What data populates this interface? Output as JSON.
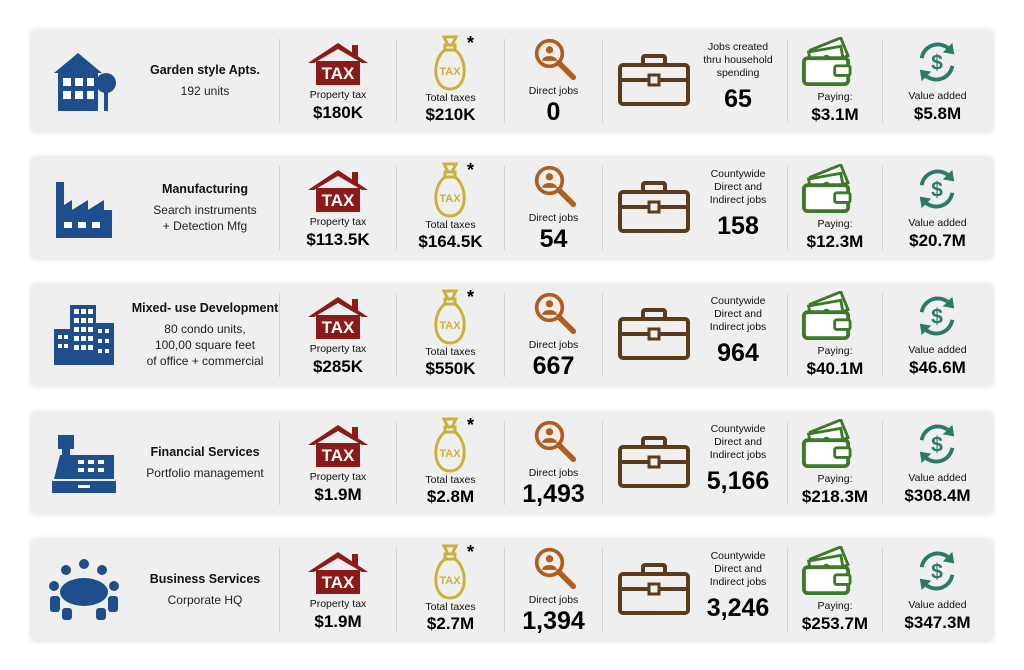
{
  "labels": {
    "property_tax": "Property tax",
    "total_taxes": "Total taxes",
    "direct_jobs": "Direct jobs",
    "paying": "Paying:",
    "value_added": "Value added",
    "asterisk": "*",
    "tax_text": "TAX"
  },
  "colors": {
    "house": "#8b1a1a",
    "bag": "#c9b23a",
    "magnifier": "#b05e1e",
    "briefcase": "#5c3a1c",
    "wallet": "#3c7a2a",
    "dollar_cycle": "#2a7a6a",
    "building": "#1f4e8c"
  },
  "rows": [
    {
      "icon": "apartment-icon",
      "title": "Garden style Apts.",
      "desc": "192 units",
      "property_tax": "$180K",
      "total_taxes": "$210K",
      "direct_jobs": "0",
      "jobs_label": "Jobs created\nthru household\nspending",
      "jobs_value": "65",
      "paying": "$3.1M",
      "value_added": "$5.8M"
    },
    {
      "icon": "factory-icon",
      "title": "Manufacturing",
      "desc": "Search instruments\n+ Detection Mfg",
      "property_tax": "$113.5K",
      "total_taxes": "$164.5K",
      "direct_jobs": "54",
      "jobs_label": "Countywide\nDirect and\nIndirect jobs",
      "jobs_value": "158",
      "paying": "$12.3M",
      "value_added": "$20.7M"
    },
    {
      "icon": "office-building-icon",
      "title": "Mixed- use Development",
      "desc": "80 condo units,\n100,00 square feet\nof office + commercial",
      "property_tax": "$285K",
      "total_taxes": "$550K",
      "direct_jobs": "667",
      "jobs_label": "Countywide\nDirect and\nIndirect jobs",
      "jobs_value": "964",
      "paying": "$40.1M",
      "value_added": "$46.6M"
    },
    {
      "icon": "cash-register-icon",
      "title": "Financial Services",
      "desc": "Portfolio management",
      "property_tax": "$1.9M",
      "total_taxes": "$2.8M",
      "direct_jobs": "1,493",
      "jobs_label": "Countywide\nDirect and\nIndirect jobs",
      "jobs_value": "5,166",
      "paying": "$218.3M",
      "value_added": "$308.4M"
    },
    {
      "icon": "conference-table-icon",
      "title": "Business Services",
      "desc": "Corporate HQ",
      "property_tax": "$1.9M",
      "total_taxes": "$2.7M",
      "direct_jobs": "1,394",
      "jobs_label": "Countywide\nDirect and\nIndirect jobs",
      "jobs_value": "3,246",
      "paying": "$253.7M",
      "value_added": "$347.3M"
    }
  ]
}
